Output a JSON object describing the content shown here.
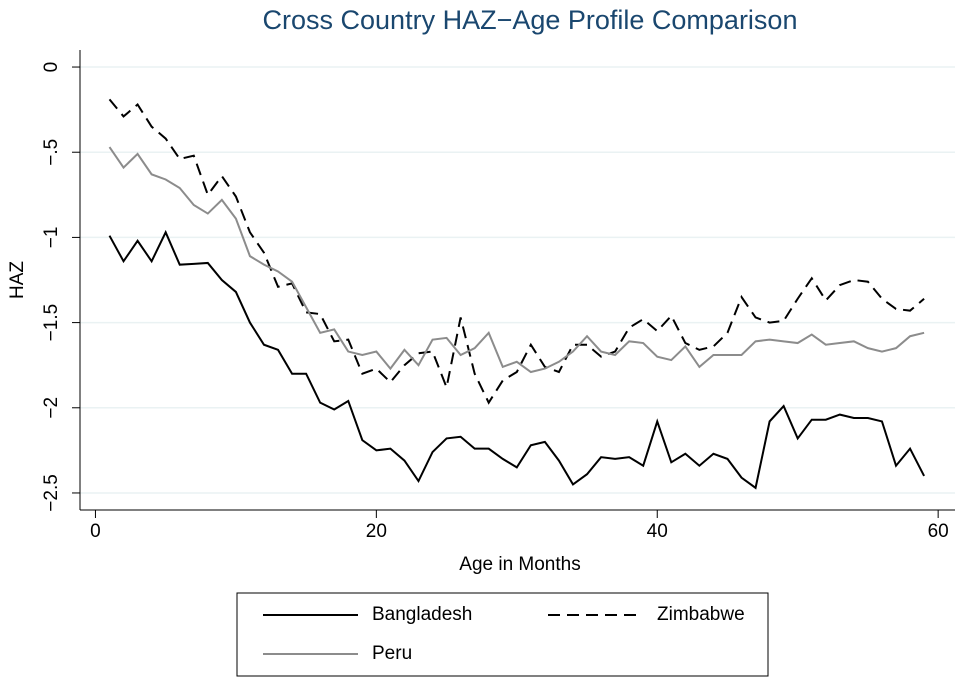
{
  "chart_data": {
    "type": "line",
    "title": "Cross Country HAZ−Age Profile Comparison",
    "x_label": "Age in Months",
    "y_label": "HAZ",
    "x": [
      1,
      2,
      3,
      4,
      5,
      6,
      7,
      8,
      9,
      10,
      11,
      12,
      13,
      14,
      15,
      16,
      17,
      18,
      19,
      20,
      21,
      22,
      23,
      24,
      25,
      26,
      27,
      28,
      29,
      30,
      31,
      32,
      33,
      34,
      35,
      36,
      37,
      38,
      39,
      40,
      41,
      42,
      43,
      44,
      45,
      46,
      47,
      48,
      49,
      50,
      51,
      52,
      53,
      54,
      55,
      56,
      57,
      58,
      59
    ],
    "series": [
      {
        "name": "Bangladesh",
        "color": "#000000",
        "dash": "solid",
        "values": [
          -0.99,
          -1.14,
          -1.02,
          -1.14,
          -0.97,
          -1.16,
          -1.155,
          -1.15,
          -1.25,
          -1.32,
          -1.5,
          -1.63,
          -1.66,
          -1.8,
          -1.8,
          -1.97,
          -2.01,
          -1.96,
          -2.19,
          -2.25,
          -2.24,
          -2.31,
          -2.43,
          -2.26,
          -2.18,
          -2.17,
          -2.24,
          -2.24,
          -2.3,
          -2.35,
          -2.22,
          -2.2,
          -2.31,
          -2.45,
          -2.39,
          -2.29,
          -2.3,
          -2.29,
          -2.34,
          -2.08,
          -2.32,
          -2.27,
          -2.34,
          -2.27,
          -2.3,
          -2.41,
          -2.47,
          -2.08,
          -1.99,
          -2.18,
          -2.07,
          -2.07,
          -2.04,
          -2.06,
          -2.06,
          -2.08,
          -2.34,
          -2.24,
          -2.4
        ]
      },
      {
        "name": "Zimbabwe",
        "color": "#000000",
        "dash": "dashed",
        "values": [
          -0.19,
          -0.29,
          -0.22,
          -0.35,
          -0.42,
          -0.54,
          -0.52,
          -0.75,
          -0.64,
          -0.76,
          -0.97,
          -1.09,
          -1.29,
          -1.27,
          -1.44,
          -1.45,
          -1.61,
          -1.6,
          -1.8,
          -1.77,
          -1.85,
          -1.75,
          -1.68,
          -1.67,
          -1.88,
          -1.47,
          -1.8,
          -1.97,
          -1.84,
          -1.79,
          -1.63,
          -1.76,
          -1.79,
          -1.63,
          -1.63,
          -1.7,
          -1.67,
          -1.53,
          -1.48,
          -1.55,
          -1.46,
          -1.62,
          -1.66,
          -1.64,
          -1.56,
          -1.35,
          -1.47,
          -1.5,
          -1.49,
          -1.36,
          -1.24,
          -1.37,
          -1.28,
          -1.25,
          -1.26,
          -1.36,
          -1.42,
          -1.43,
          -1.36
        ]
      },
      {
        "name": "Peru",
        "color": "#8c8c8c",
        "dash": "solid",
        "values": [
          -0.47,
          -0.59,
          -0.51,
          -0.63,
          -0.66,
          -0.71,
          -0.81,
          -0.86,
          -0.78,
          -0.89,
          -1.11,
          -1.16,
          -1.2,
          -1.26,
          -1.41,
          -1.56,
          -1.54,
          -1.67,
          -1.69,
          -1.67,
          -1.77,
          -1.66,
          -1.75,
          -1.6,
          -1.59,
          -1.69,
          -1.65,
          -1.56,
          -1.76,
          -1.73,
          -1.79,
          -1.77,
          -1.73,
          -1.67,
          -1.58,
          -1.67,
          -1.69,
          -1.61,
          -1.62,
          -1.7,
          -1.72,
          -1.64,
          -1.76,
          -1.69,
          -1.69,
          -1.69,
          -1.61,
          -1.6,
          -1.61,
          -1.62,
          -1.57,
          -1.63,
          -1.62,
          -1.61,
          -1.65,
          -1.67,
          -1.65,
          -1.58,
          -1.56
        ]
      }
    ],
    "xlim": [
      -1.1,
      61.2
    ],
    "ylim": [
      -2.6,
      0.1
    ],
    "xticks": [
      0,
      20,
      40,
      60
    ],
    "yticks": [
      0,
      {
        "value": -0.5,
        "label": "−.5"
      },
      {
        "value": -1,
        "label": "−1"
      },
      {
        "value": -1.5,
        "label": "−1.5"
      },
      {
        "value": -2,
        "label": "−2"
      },
      {
        "value": -2.5,
        "label": "−2.5"
      }
    ],
    "grid": true,
    "legend": "bottom"
  }
}
